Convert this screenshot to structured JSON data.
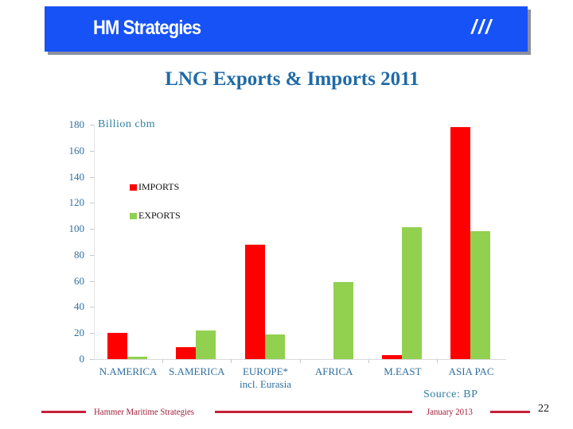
{
  "header": {
    "brand": "HM Strategies",
    "mark": "///",
    "colors": {
      "background": "#1652f5",
      "shadow": "#8c8f9e",
      "text": "#ffffff"
    }
  },
  "slide": {
    "title": "LNG Exports & Imports 2011"
  },
  "chart_data": {
    "type": "bar",
    "title": "LNG Exports & Imports 2011",
    "xlabel": "",
    "ylabel": "Billion cbm",
    "ylim": [
      0,
      180
    ],
    "yticks": [
      0,
      20,
      40,
      60,
      80,
      100,
      120,
      140,
      160,
      180
    ],
    "grid": false,
    "legend_position": "upper left inside",
    "categories": [
      "N.AMERICA",
      "S.AMERICA",
      "EUROPE* incl. Eurasia",
      "AFRICA",
      "M.EAST",
      "ASIA PAC"
    ],
    "category_labels": [
      [
        "N.AMERICA"
      ],
      [
        "S.AMERICA"
      ],
      [
        "EUROPE*",
        "incl. Eurasia"
      ],
      [
        "AFRICA"
      ],
      [
        "M.EAST"
      ],
      [
        "ASIA PAC"
      ]
    ],
    "series": [
      {
        "name": "IMPORTS",
        "color": "#ff0000",
        "values": [
          20,
          9,
          88,
          0,
          3,
          178
        ]
      },
      {
        "name": "EXPORTS",
        "color": "#92d050",
        "values": [
          2,
          22,
          19,
          59,
          101,
          98
        ]
      }
    ],
    "source": "Source: BP"
  },
  "footer": {
    "company": "Hammer Maritime Strategies",
    "date": "January 2013",
    "page": "22",
    "line_color": "#c8203a"
  }
}
